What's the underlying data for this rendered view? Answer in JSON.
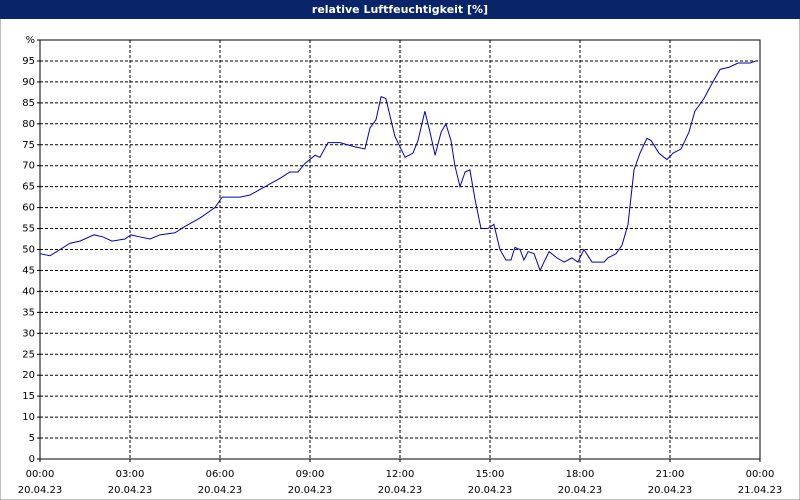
{
  "chart_data": {
    "type": "line",
    "title": "relative Luftfeuchtigkeit [%]",
    "x": [
      0,
      0.33,
      0.67,
      1,
      1.33,
      1.8,
      2.1,
      2.4,
      2.83,
      3.03,
      3.33,
      3.67,
      4,
      4.5,
      4.83,
      5.33,
      5.83,
      6.07,
      6.67,
      7,
      7.5,
      8,
      8.33,
      8.6,
      8.83,
      9.17,
      9.33,
      9.6,
      10,
      10.5,
      10.83,
      11,
      11.2,
      11.37,
      11.53,
      11.83,
      12.17,
      12.43,
      12.6,
      12.83,
      13,
      13.17,
      13.37,
      13.53,
      13.7,
      13.83,
      14,
      14.17,
      14.33,
      14.5,
      14.7,
      14.93,
      15.13,
      15.33,
      15.53,
      15.7,
      15.83,
      16,
      16.13,
      16.27,
      16.47,
      16.67,
      16.8,
      16.97,
      17.23,
      17.47,
      17.73,
      17.93,
      18.13,
      18.4,
      18.8,
      18.93,
      19.2,
      19.4,
      19.6,
      19.8,
      20,
      20.23,
      20.37,
      20.63,
      20.8,
      20.9,
      21.1,
      21.37,
      21.63,
      21.83,
      22.13,
      22.43,
      22.67,
      22.97,
      23.27,
      23.67,
      23.87
    ],
    "series": [
      {
        "name": "relative Luftfeuchtigkeit",
        "color": "#0000c0",
        "values": [
          49,
          48.5,
          50,
          51.5,
          52,
          53.5,
          53,
          52,
          52.5,
          53.5,
          53,
          52.5,
          53.5,
          54,
          55.5,
          57.5,
          60,
          62.5,
          62.5,
          63,
          65,
          67,
          68.5,
          68.5,
          70.5,
          72.5,
          72,
          75.5,
          75.5,
          74.5,
          74,
          79,
          81,
          86.5,
          86,
          77,
          72,
          73,
          76,
          83,
          78,
          72.5,
          78,
          80,
          76,
          70,
          65,
          68.5,
          69,
          62,
          55,
          55,
          56,
          50,
          47.5,
          47.5,
          50.5,
          50,
          47.5,
          49.5,
          49,
          45,
          47,
          49.5,
          48,
          47,
          48,
          47,
          50,
          47,
          47,
          48,
          49,
          51,
          56,
          69,
          73,
          76.5,
          76,
          73,
          72,
          71.5,
          73,
          74,
          78,
          83,
          86,
          90,
          93,
          93.5,
          94.5,
          94.5,
          95
        ]
      }
    ],
    "xlim": [
      0,
      24
    ],
    "xticks": [
      {
        "value": 0,
        "label": "00:00",
        "date": "20.04.23"
      },
      {
        "value": 3,
        "label": "03:00",
        "date": "20.04.23"
      },
      {
        "value": 6,
        "label": "06:00",
        "date": "20.04.23"
      },
      {
        "value": 9,
        "label": "09:00",
        "date": "20.04.23"
      },
      {
        "value": 12,
        "label": "12:00",
        "date": "20.04.23"
      },
      {
        "value": 15,
        "label": "15:00",
        "date": "20.04.23"
      },
      {
        "value": 18,
        "label": "18:00",
        "date": "20.04.23"
      },
      {
        "value": 21,
        "label": "21:00",
        "date": "20.04.23"
      },
      {
        "value": 24,
        "label": "00:00",
        "date": "21.04.23"
      }
    ],
    "ylim": [
      0,
      100
    ],
    "yticks": [
      0,
      5,
      10,
      15,
      20,
      25,
      30,
      35,
      40,
      45,
      50,
      55,
      60,
      65,
      70,
      75,
      80,
      85,
      90,
      95,
      {
        "value": 100,
        "label": "%"
      }
    ],
    "grid": true
  }
}
